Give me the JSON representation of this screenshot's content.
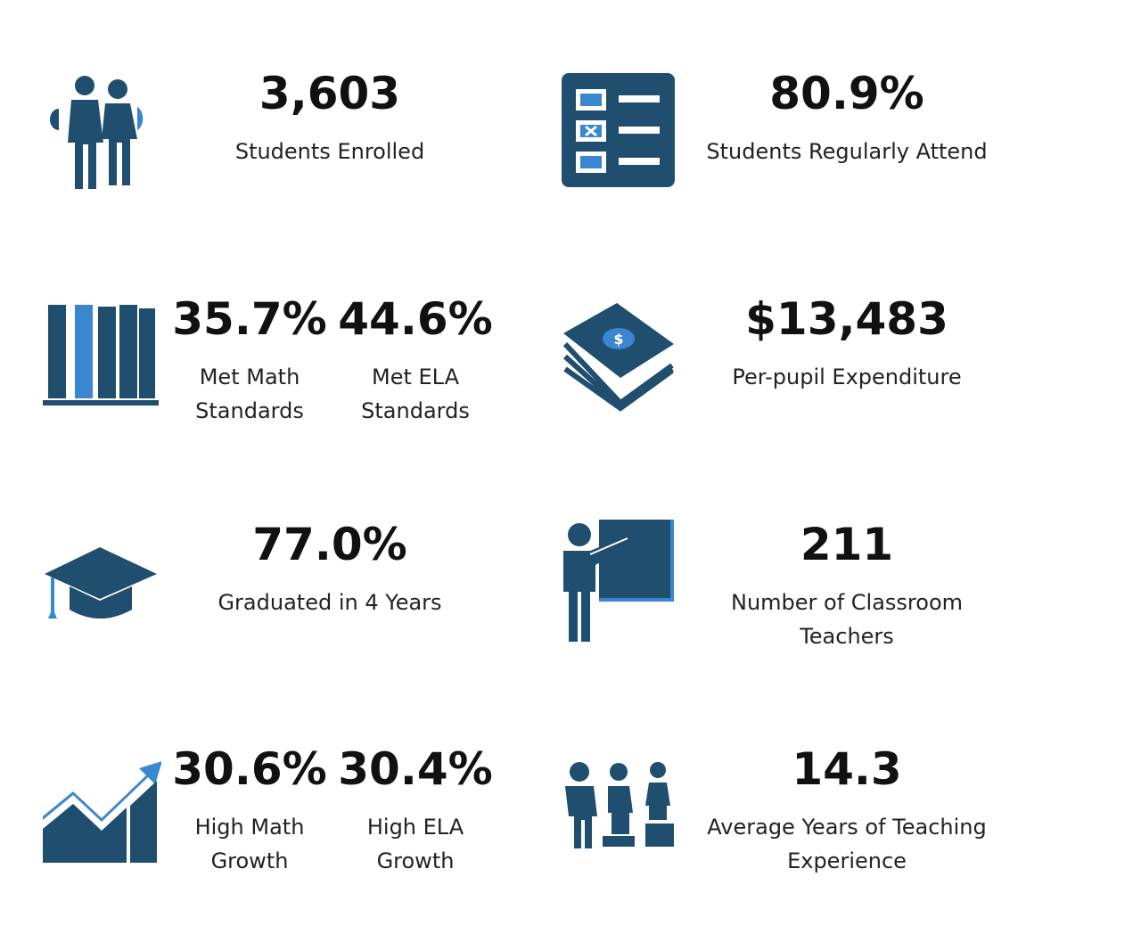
{
  "tiles": [
    {
      "stats": [
        {
          "value": "3,603",
          "label": [
            "Students Enrolled"
          ]
        }
      ]
    },
    {
      "stats": [
        {
          "value": "80.9%",
          "label": [
            "Students Regularly Attend"
          ]
        }
      ]
    },
    {
      "stats": [
        {
          "value": "35.7%",
          "label": [
            "Met Math",
            "Standards"
          ]
        },
        {
          "value": "44.6%",
          "label": [
            "Met ELA",
            "Standards"
          ]
        }
      ]
    },
    {
      "stats": [
        {
          "value": "$13,483",
          "label": [
            "Per-pupil Expenditure"
          ]
        }
      ]
    },
    {
      "stats": [
        {
          "value": "77.0%",
          "label": [
            "Graduated in 4 Years"
          ]
        }
      ]
    },
    {
      "stats": [
        {
          "value": "211",
          "label": [
            "Number of Classroom",
            "Teachers"
          ]
        }
      ]
    },
    {
      "stats": [
        {
          "value": "30.6%",
          "label": [
            "High Math",
            "Growth"
          ]
        },
        {
          "value": "30.4%",
          "label": [
            "High ELA",
            "Growth"
          ]
        }
      ]
    },
    {
      "stats": [
        {
          "value": "14.3",
          "label": [
            "Average Years of Teaching",
            "Experience"
          ]
        }
      ]
    }
  ]
}
